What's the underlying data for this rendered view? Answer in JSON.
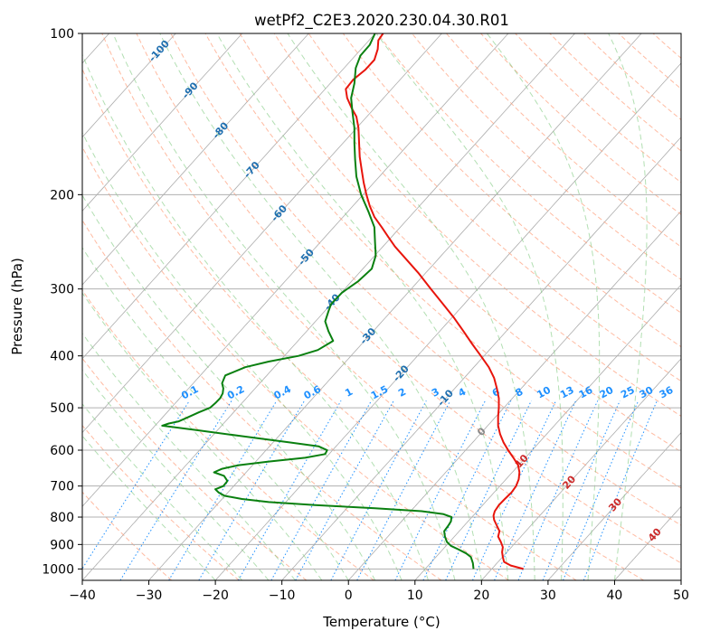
{
  "chart_data": {
    "type": "line",
    "title": "wetPf2_C2E3.2020.230.04.30.R01",
    "xlabel": "Temperature (°C)",
    "ylabel": "Pressure (hPa)",
    "xlim": [
      -40,
      50
    ],
    "ylim": [
      1050,
      100
    ],
    "y_scale": "log",
    "grid": true,
    "x_ticks": [
      -40,
      -30,
      -20,
      -10,
      0,
      10,
      20,
      30,
      40,
      50
    ],
    "y_ticks": [
      100,
      200,
      300,
      400,
      500,
      600,
      700,
      800,
      900,
      1000
    ],
    "x_tick_labels": [
      "−40",
      "−30",
      "−20",
      "−10",
      "0",
      "10",
      "20",
      "30",
      "40",
      "50"
    ],
    "y_tick_labels": [
      "100",
      "200",
      "300",
      "400",
      "500",
      "600",
      "700",
      "800",
      "900",
      "1000"
    ],
    "isotherm_labels": [
      "-100",
      "-90",
      "-80",
      "-70",
      "-60",
      "-50",
      "-40",
      "-30",
      "-20",
      "-10",
      "0",
      "10",
      "20",
      "30",
      "40"
    ],
    "isotherm_label_values": [
      -100,
      -90,
      -80,
      -70,
      -60,
      -50,
      -40,
      -30,
      -20,
      -10,
      0,
      10,
      20,
      30,
      40
    ],
    "isotherm_label_pressures": [
      108,
      128,
      152,
      180,
      217,
      262,
      318,
      368,
      432,
      480,
      555,
      630,
      690,
      760,
      865
    ],
    "mixing_ratio_labels": [
      "0.1",
      "0.2",
      "0.4",
      "0.6",
      "1",
      "1.5",
      "2",
      "3",
      "4",
      "6",
      "8",
      "10",
      "13",
      "16",
      "20",
      "25",
      "30",
      "36"
    ],
    "mixing_ratio_label_x": [
      -23.6,
      -16.7,
      -9.7,
      -5.2,
      0.3,
      4.9,
      8.3,
      13.3,
      17.3,
      22.4,
      25.9,
      29.6,
      33.1,
      35.9,
      39.0,
      42.2,
      45.0,
      48.0
    ],
    "mixing_ratio_label_pressure": 485,
    "colors": {
      "temperature": "#e8150c",
      "dewpoint": "#0a8010",
      "isotherm_label": "#1f6fb0",
      "isotherm_label_warm": "#cc2929",
      "isotherm_label_zero": "#888888",
      "mixing_ratio": "#1e90ff",
      "dry_adiabat": "#ff9e7a",
      "moist_adiabat": "#7fc97f",
      "skewed_isotherm": "#999999",
      "grid": "#b0b0b0"
    },
    "series": [
      {
        "name": "",
        "role": "temperature",
        "values": [
          [
            1000,
            26.3
          ],
          [
            985,
            24.4
          ],
          [
            970,
            23.4
          ],
          [
            950,
            23.2
          ],
          [
            930,
            23.1
          ],
          [
            910,
            23.2
          ],
          [
            890,
            22.9
          ],
          [
            870,
            22.5
          ],
          [
            850,
            22.7
          ],
          [
            830,
            22.3
          ],
          [
            810,
            21.9
          ],
          [
            795,
            21.8
          ],
          [
            780,
            22.0
          ],
          [
            760,
            22.6
          ],
          [
            740,
            23.5
          ],
          [
            720,
            24.5
          ],
          [
            700,
            25.2
          ],
          [
            680,
            25.6
          ],
          [
            660,
            25.7
          ],
          [
            640,
            25.5
          ],
          [
            620,
            24.8
          ],
          [
            600,
            24.0
          ],
          [
            580,
            23.3
          ],
          [
            560,
            22.8
          ],
          [
            540,
            22.5
          ],
          [
            520,
            22.5
          ],
          [
            500,
            22.6
          ],
          [
            480,
            22.6
          ],
          [
            460,
            22.3
          ],
          [
            440,
            21.9
          ],
          [
            420,
            21.1
          ],
          [
            400,
            19.9
          ],
          [
            380,
            18.6
          ],
          [
            360,
            17.3
          ],
          [
            340,
            15.9
          ],
          [
            320,
            14.2
          ],
          [
            300,
            12.4
          ],
          [
            280,
            10.5
          ],
          [
            265,
            8.8
          ],
          [
            250,
            7.0
          ],
          [
            240,
            6.0
          ],
          [
            230,
            5.0
          ],
          [
            220,
            3.9
          ],
          [
            210,
            3.2
          ],
          [
            200,
            2.7
          ],
          [
            190,
            2.3
          ],
          [
            180,
            2.0
          ],
          [
            170,
            1.7
          ],
          [
            160,
            1.6
          ],
          [
            150,
            1.5
          ],
          [
            143,
            1.2
          ],
          [
            138,
            0.5
          ],
          [
            132,
            -0.2
          ],
          [
            127,
            -0.4
          ],
          [
            122,
            0.7
          ],
          [
            117,
            2.5
          ],
          [
            112,
            3.9
          ],
          [
            107,
            4.4
          ],
          [
            103,
            4.5
          ],
          [
            100,
            5.2
          ]
        ]
      },
      {
        "name": "",
        "role": "dewpoint",
        "values": [
          [
            1000,
            18.8
          ],
          [
            975,
            18.7
          ],
          [
            950,
            18.4
          ],
          [
            935,
            17.7
          ],
          [
            920,
            16.6
          ],
          [
            905,
            15.4
          ],
          [
            890,
            14.8
          ],
          [
            870,
            14.5
          ],
          [
            850,
            14.4
          ],
          [
            830,
            15.0
          ],
          [
            815,
            15.4
          ],
          [
            800,
            15.5
          ],
          [
            790,
            14.3
          ],
          [
            780,
            11.0
          ],
          [
            770,
            4.0
          ],
          [
            760,
            -5.0
          ],
          [
            750,
            -12.0
          ],
          [
            740,
            -16.0
          ],
          [
            730,
            -18.6
          ],
          [
            720,
            -19.5
          ],
          [
            710,
            -20.0
          ],
          [
            700,
            -18.8
          ],
          [
            685,
            -18.2
          ],
          [
            670,
            -18.7
          ],
          [
            660,
            -20.2
          ],
          [
            650,
            -19.0
          ],
          [
            640,
            -16.5
          ],
          [
            630,
            -12.0
          ],
          [
            620,
            -6.5
          ],
          [
            610,
            -3.5
          ],
          [
            600,
            -3.2
          ],
          [
            590,
            -4.5
          ],
          [
            580,
            -9.0
          ],
          [
            565,
            -16.0
          ],
          [
            550,
            -23.0
          ],
          [
            540,
            -28.0
          ],
          [
            535,
            -27.0
          ],
          [
            530,
            -25.5
          ],
          [
            520,
            -24.0
          ],
          [
            510,
            -22.5
          ],
          [
            500,
            -20.8
          ],
          [
            490,
            -20.0
          ],
          [
            480,
            -19.3
          ],
          [
            470,
            -18.9
          ],
          [
            460,
            -18.8
          ],
          [
            450,
            -19.0
          ],
          [
            435,
            -18.5
          ],
          [
            420,
            -15.5
          ],
          [
            410,
            -12.0
          ],
          [
            400,
            -7.5
          ],
          [
            390,
            -4.6
          ],
          [
            375,
            -2.3
          ],
          [
            360,
            -3.0
          ],
          [
            345,
            -3.5
          ],
          [
            330,
            -3.0
          ],
          [
            320,
            -2.6
          ],
          [
            305,
            -1.0
          ],
          [
            290,
            1.5
          ],
          [
            275,
            3.5
          ],
          [
            260,
            4.1
          ],
          [
            245,
            4.0
          ],
          [
            230,
            3.9
          ],
          [
            215,
            3.0
          ],
          [
            200,
            1.9
          ],
          [
            185,
            1.2
          ],
          [
            172,
            1.0
          ],
          [
            160,
            0.9
          ],
          [
            150,
            0.9
          ],
          [
            140,
            0.6
          ],
          [
            132,
            0.4
          ],
          [
            124,
            0.9
          ],
          [
            116,
            1.1
          ],
          [
            110,
            1.8
          ],
          [
            105,
            3.2
          ],
          [
            100,
            4.0
          ]
        ]
      }
    ]
  }
}
